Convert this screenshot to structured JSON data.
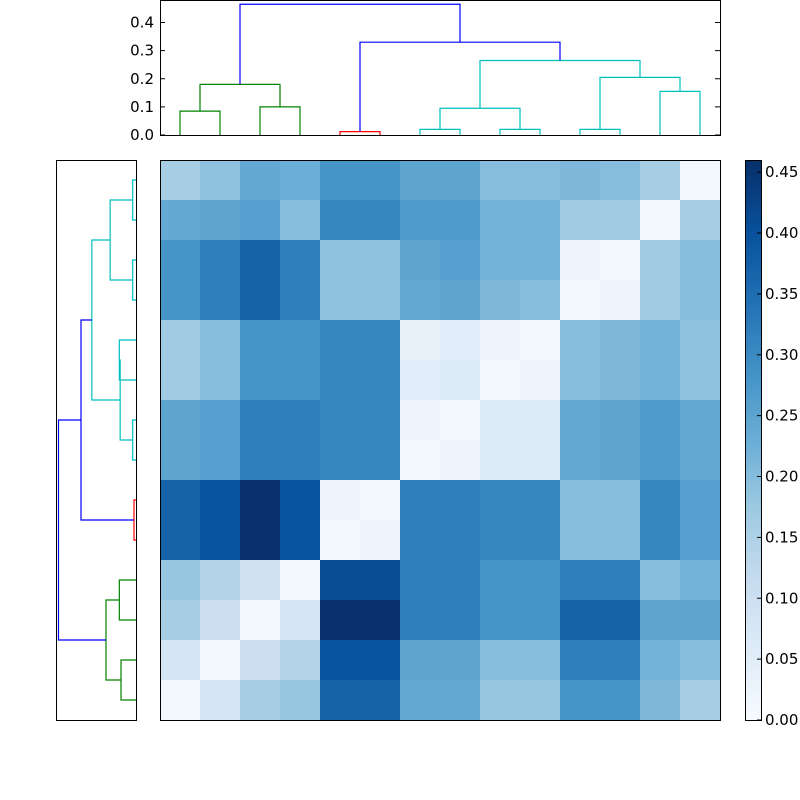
{
  "chart_data": {
    "type": "heatmap",
    "title": "",
    "colormap": "Blues",
    "grid": false,
    "matrix": [
      [
        0.16,
        0.19,
        0.24,
        0.23,
        0.28,
        0.28,
        0.25,
        0.25,
        0.2,
        0.2,
        0.21,
        0.2,
        0.16,
        0.01
      ],
      [
        0.24,
        0.25,
        0.26,
        0.2,
        0.31,
        0.31,
        0.27,
        0.27,
        0.22,
        0.22,
        0.17,
        0.17,
        0.01,
        0.16
      ],
      [
        0.28,
        0.32,
        0.37,
        0.32,
        0.19,
        0.19,
        0.25,
        0.26,
        0.22,
        0.22,
        0.02,
        0.01,
        0.17,
        0.2
      ],
      [
        0.28,
        0.32,
        0.37,
        0.32,
        0.19,
        0.19,
        0.24,
        0.25,
        0.21,
        0.2,
        0.01,
        0.02,
        0.17,
        0.2
      ],
      [
        0.17,
        0.2,
        0.28,
        0.28,
        0.31,
        0.31,
        0.04,
        0.05,
        0.02,
        0.01,
        0.2,
        0.21,
        0.22,
        0.19
      ],
      [
        0.17,
        0.2,
        0.28,
        0.28,
        0.31,
        0.31,
        0.05,
        0.06,
        0.01,
        0.02,
        0.2,
        0.21,
        0.22,
        0.19
      ],
      [
        0.25,
        0.26,
        0.32,
        0.32,
        0.31,
        0.31,
        0.02,
        0.01,
        0.06,
        0.06,
        0.24,
        0.25,
        0.27,
        0.24
      ],
      [
        0.25,
        0.26,
        0.32,
        0.32,
        0.31,
        0.31,
        0.01,
        0.02,
        0.06,
        0.06,
        0.24,
        0.25,
        0.27,
        0.24
      ],
      [
        0.37,
        0.4,
        0.46,
        0.4,
        0.02,
        0.01,
        0.32,
        0.32,
        0.31,
        0.31,
        0.2,
        0.2,
        0.31,
        0.26
      ],
      [
        0.37,
        0.4,
        0.46,
        0.4,
        0.01,
        0.02,
        0.32,
        0.32,
        0.31,
        0.31,
        0.2,
        0.2,
        0.31,
        0.26
      ],
      [
        0.18,
        0.14,
        0.09,
        0.01,
        0.41,
        0.41,
        0.32,
        0.32,
        0.28,
        0.28,
        0.32,
        0.32,
        0.2,
        0.22
      ],
      [
        0.16,
        0.1,
        0.01,
        0.08,
        0.46,
        0.46,
        0.32,
        0.32,
        0.28,
        0.28,
        0.37,
        0.37,
        0.25,
        0.25
      ],
      [
        0.08,
        0.01,
        0.1,
        0.14,
        0.4,
        0.4,
        0.25,
        0.25,
        0.2,
        0.2,
        0.32,
        0.32,
        0.22,
        0.2
      ],
      [
        0.01,
        0.08,
        0.16,
        0.18,
        0.37,
        0.37,
        0.24,
        0.24,
        0.18,
        0.18,
        0.28,
        0.28,
        0.21,
        0.16
      ]
    ],
    "colorbar": {
      "range": [
        0,
        0.46
      ],
      "ticks": [
        "0.00",
        "0.05",
        "0.10",
        "0.15",
        "0.20",
        "0.25",
        "0.30",
        "0.35",
        "0.40",
        "0.45"
      ]
    },
    "top_dendrogram": {
      "y_range": [
        0,
        0.48
      ],
      "y_ticks": [
        "0.0",
        "0.1",
        "0.2",
        "0.3",
        "0.4"
      ],
      "leaf_count": 14,
      "links": [
        {
          "left": 0,
          "right": 1,
          "height": 0.085,
          "color": "#008000"
        },
        {
          "left": 2,
          "right": 3,
          "height": 0.1,
          "color": "#008000"
        },
        {
          "left": "0-1",
          "right": "2-3",
          "height": 0.18,
          "color": "#008000"
        },
        {
          "left": 4,
          "right": 5,
          "height": 0.012,
          "color": "#ff0000"
        },
        {
          "left": 6,
          "right": 7,
          "height": 0.02,
          "color": "#00bfbf"
        },
        {
          "left": 8,
          "right": 9,
          "height": 0.02,
          "color": "#00bfbf"
        },
        {
          "left": "6-7",
          "right": "8-9",
          "height": 0.095,
          "color": "#00bfbf"
        },
        {
          "left": 10,
          "right": 11,
          "height": 0.02,
          "color": "#00bfbf"
        },
        {
          "left": 12,
          "right": 13,
          "height": 0.155,
          "color": "#00bfbf"
        },
        {
          "left": "10-11",
          "right": "12-13",
          "height": 0.205,
          "color": "#00bfbf"
        },
        {
          "left": "6-9",
          "right": "10-13",
          "height": 0.265,
          "color": "#00bfbf"
        },
        {
          "left": "4-5",
          "right": "6-13",
          "height": 0.33,
          "color": "#0000ff"
        },
        {
          "left": "0-3",
          "right": "4-13",
          "height": 0.465,
          "color": "#0000ff"
        }
      ]
    },
    "left_dendrogram": {
      "orientation": "right",
      "leaf_count": 14,
      "links": [
        {
          "leaves": [
            0,
            1
          ],
          "height": 0.02,
          "color": "#00bfbf"
        },
        {
          "leaves": [
            2,
            3
          ],
          "height": 0.02,
          "color": "#00bfbf"
        },
        {
          "leaves": [
            4,
            5
          ],
          "height": 0.1,
          "color": "#00bfbf"
        },
        {
          "leaves": [
            6,
            7
          ],
          "height": 0.02,
          "color": "#00bfbf"
        },
        {
          "leaves": [
            8,
            9
          ],
          "height": 0.012,
          "color": "#ff0000"
        },
        {
          "leaves": [
            10,
            11
          ],
          "height": 0.1,
          "color": "#008000"
        },
        {
          "leaves": [
            12,
            13
          ],
          "height": 0.09,
          "color": "#008000"
        }
      ]
    }
  }
}
